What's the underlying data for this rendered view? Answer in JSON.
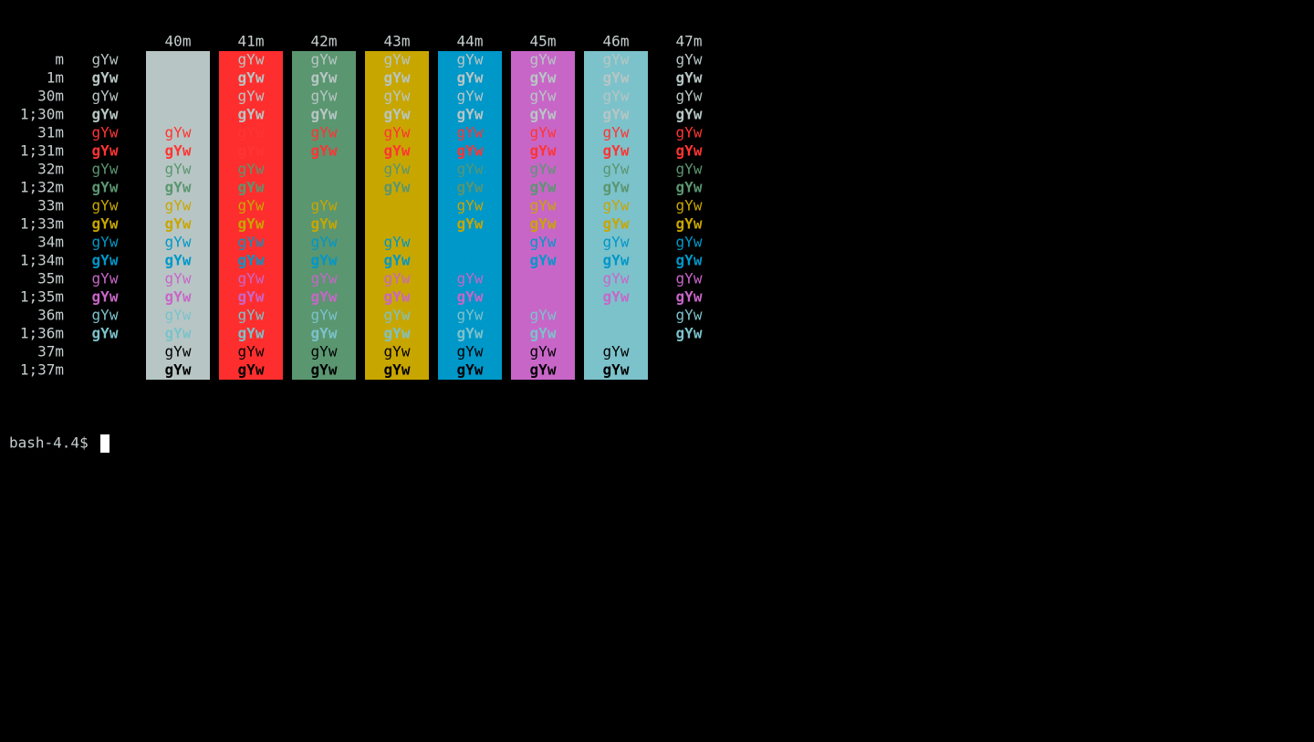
{
  "terminal": {
    "sample_text": "gYw",
    "prompt": "bash-4.4$",
    "default_color": "#c6cfcf",
    "columns": [
      {
        "label": "40m",
        "background": "#b7c6c4"
      },
      {
        "label": "41m",
        "background": "#ff2e2e"
      },
      {
        "label": "42m",
        "background": "#5a9670"
      },
      {
        "label": "43m",
        "background": "#c8a600"
      },
      {
        "label": "44m",
        "background": "#0097c9"
      },
      {
        "label": "45m",
        "background": "#c866c8"
      },
      {
        "label": "46m",
        "background": "#7cc2cb"
      },
      {
        "label": "47m",
        "background": "#000000"
      }
    ],
    "rows": [
      {
        "label": "m",
        "color": "#b7c6c4",
        "bold": false
      },
      {
        "label": "1m",
        "color": "#b7c6c4",
        "bold": true
      },
      {
        "label": "30m",
        "color": "#b7c6c4",
        "bold": false
      },
      {
        "label": "1;30m",
        "color": "#b7c6c4",
        "bold": true
      },
      {
        "label": "31m",
        "color": "#ff3434",
        "bold": false
      },
      {
        "label": "1;31m",
        "color": "#ff3434",
        "bold": true
      },
      {
        "label": "32m",
        "color": "#5a9670",
        "bold": false
      },
      {
        "label": "1;32m",
        "color": "#5a9670",
        "bold": true
      },
      {
        "label": "33m",
        "color": "#c8a600",
        "bold": false
      },
      {
        "label": "1;33m",
        "color": "#c8a600",
        "bold": true
      },
      {
        "label": "34m",
        "color": "#0097c9",
        "bold": false
      },
      {
        "label": "1;34m",
        "color": "#0097c9",
        "bold": true
      },
      {
        "label": "35m",
        "color": "#c866c8",
        "bold": false
      },
      {
        "label": "1;35m",
        "color": "#c866c8",
        "bold": true
      },
      {
        "label": "36m",
        "color": "#7cc2cb",
        "bold": false
      },
      {
        "label": "1;36m",
        "color": "#7cc2cb",
        "bold": true
      },
      {
        "label": "37m",
        "color": "#000000",
        "bold": false
      },
      {
        "label": "1;37m",
        "color": "#000000",
        "bold": true
      }
    ]
  }
}
